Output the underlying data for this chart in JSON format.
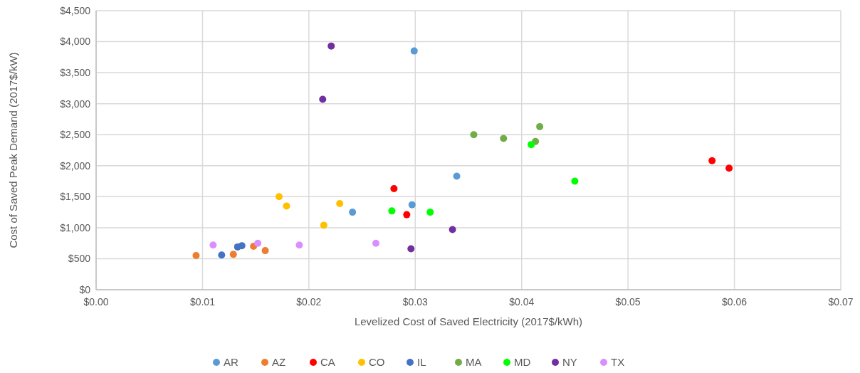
{
  "chart_data": {
    "type": "scatter",
    "xlabel": "Levelized Cost of Saved Electricity (2017$/kWh)",
    "ylabel": "Cost of Saved Peak Demand (2017$/kW)",
    "xlim": [
      0,
      0.07
    ],
    "xticks": [
      {
        "value": 0,
        "label": "$0.00"
      },
      {
        "value": 0.01,
        "label": "$0.01"
      },
      {
        "value": 0.02,
        "label": "$0.02"
      },
      {
        "value": 0.03,
        "label": "$0.03"
      },
      {
        "value": 0.04,
        "label": "$0.04"
      },
      {
        "value": 0.05,
        "label": "$0.05"
      },
      {
        "value": 0.06,
        "label": "$0.06"
      },
      {
        "value": 0.07,
        "label": "$0.07"
      }
    ],
    "ylim": [
      0,
      4500
    ],
    "yticks": [
      {
        "value": 0,
        "label": "$0"
      },
      {
        "value": 500,
        "label": "$500"
      },
      {
        "value": 1000,
        "label": "$1,000"
      },
      {
        "value": 1500,
        "label": "$1,500"
      },
      {
        "value": 2000,
        "label": "$2,000"
      },
      {
        "value": 2500,
        "label": "$2,500"
      },
      {
        "value": 3000,
        "label": "$3,000"
      },
      {
        "value": 3500,
        "label": "$3,500"
      },
      {
        "value": 4000,
        "label": "$4,000"
      },
      {
        "value": 4500,
        "label": "$4,500"
      }
    ],
    "grid": true,
    "legend": "bottom",
    "marker": "circle",
    "series": [
      {
        "name": "AR",
        "color": "#5b9bd5",
        "x": [
          0.0299,
          0.0339,
          0.0297,
          0.0241
        ],
        "values": [
          3850,
          1830,
          1370,
          1250
        ]
      },
      {
        "name": "AZ",
        "color": "#ed7d31",
        "x": [
          0.0094,
          0.0129,
          0.0148,
          0.0159
        ],
        "values": [
          550,
          570,
          700,
          630
        ]
      },
      {
        "name": "CA",
        "color": "#ff0000",
        "x": [
          0.028,
          0.0292,
          0.0579,
          0.0595
        ],
        "values": [
          1630,
          1210,
          2080,
          1960
        ]
      },
      {
        "name": "CO",
        "color": "#ffc000",
        "x": [
          0.0172,
          0.0179,
          0.0229,
          0.0214
        ],
        "values": [
          1500,
          1350,
          1390,
          1040
        ]
      },
      {
        "name": "IL",
        "color": "#4472c4",
        "x": [
          0.0118,
          0.0133,
          0.0137
        ],
        "values": [
          560,
          690,
          710
        ]
      },
      {
        "name": "MA",
        "color": "#70ad47",
        "x": [
          0.0355,
          0.0383,
          0.0413,
          0.0417
        ],
        "values": [
          2500,
          2440,
          2390,
          2630
        ]
      },
      {
        "name": "MD",
        "color": "#00ff00",
        "x": [
          0.0409,
          0.045,
          0.0278,
          0.0314
        ],
        "values": [
          2340,
          1750,
          1270,
          1250
        ]
      },
      {
        "name": "NY",
        "color": "#7030a0",
        "x": [
          0.0221,
          0.0213,
          0.0335,
          0.0296
        ],
        "values": [
          3930,
          3070,
          970,
          660
        ]
      },
      {
        "name": "TX",
        "color": "#da8fff",
        "x": [
          0.011,
          0.0152,
          0.0191,
          0.0263
        ],
        "values": [
          720,
          750,
          720,
          750
        ]
      }
    ]
  }
}
